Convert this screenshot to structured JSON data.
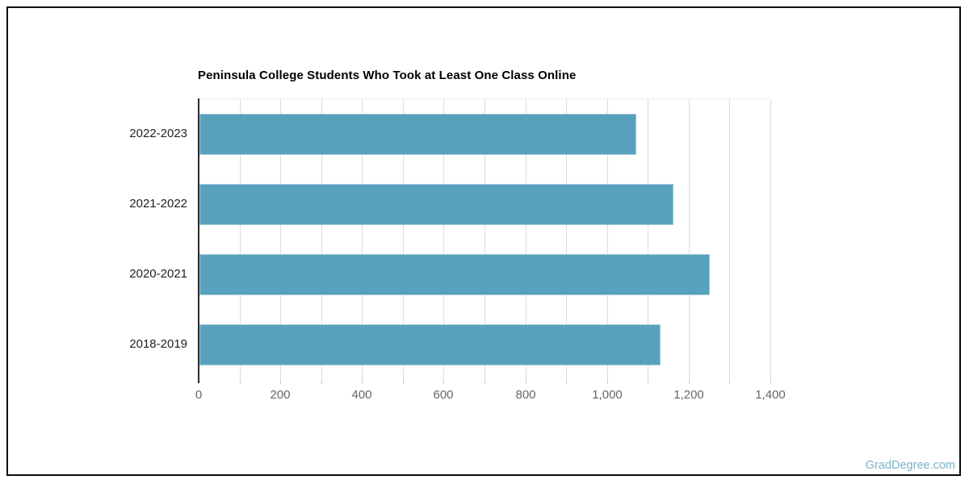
{
  "title": "Peninsula College Students Who Took at Least One Class Online",
  "watermark": "GradDegree.com",
  "colors": {
    "bar_fill": "#58a1bd",
    "bar_border": "#a3cbdb",
    "gridline": "#dcdcdc",
    "tick": "#c9c9c9",
    "y_axis_line": "#2b2b2b",
    "title_text": "#000000",
    "y_label_text": "#1f1f1f",
    "x_label_text": "#666666",
    "watermark_text": "#7cb1c7",
    "frame_border": "#0b0b0b",
    "background": "#ffffff"
  },
  "chart_data": {
    "type": "bar",
    "orientation": "horizontal",
    "title": "Peninsula College Students Who Took at Least One Class Online",
    "categories": [
      "2022-2023",
      "2021-2022",
      "2020-2021",
      "2018-2019"
    ],
    "values": [
      1070,
      1160,
      1250,
      1130
    ],
    "xlabel": "",
    "ylabel": "",
    "xlim": [
      0,
      1400
    ],
    "x_major_tick_interval": 200,
    "x_minor_tick_interval": 100,
    "x_tick_labels": [
      "0",
      "200",
      "400",
      "600",
      "800",
      "1,000",
      "1,200",
      "1,400"
    ],
    "grid": true,
    "legend": false
  }
}
